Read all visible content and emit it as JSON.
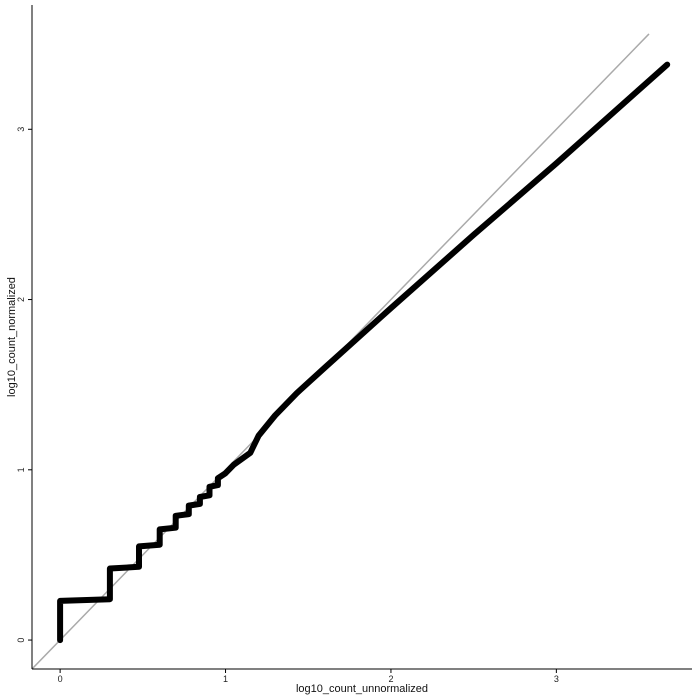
{
  "chart_data": {
    "type": "line",
    "xlabel": "log10_count_unnormalized",
    "ylabel": "log10_count_normalized",
    "xlim": [
      -0.17,
      3.82
    ],
    "ylim": [
      -0.17,
      3.73
    ],
    "x_ticks": [
      0,
      1,
      2,
      3
    ],
    "x_tick_labels": [
      "0",
      "1",
      "2",
      "3"
    ],
    "y_ticks": [
      0,
      1,
      2,
      3
    ],
    "y_tick_labels": [
      "0",
      "1",
      "2",
      "3"
    ],
    "grid": false,
    "colors": {
      "series": "#000000",
      "reference": "#aaaaaa",
      "axis": "#000000"
    },
    "reference_line": {
      "x": [
        -0.17,
        3.56
      ],
      "y": [
        -0.17,
        3.56
      ]
    },
    "series": [
      {
        "x": [
          0,
          0,
          0.301,
          0.301,
          0.477,
          0.477,
          0.602,
          0.602,
          0.699,
          0.699,
          0.778,
          0.778,
          0.845,
          0.845,
          0.903,
          0.903,
          0.954,
          0.954,
          1.0,
          1.05,
          1.15,
          1.2,
          1.3,
          1.43,
          1.6,
          2.0,
          2.5,
          3.0,
          3.67
        ],
        "y": [
          0,
          0.23,
          0.24,
          0.42,
          0.43,
          0.55,
          0.56,
          0.65,
          0.66,
          0.73,
          0.74,
          0.79,
          0.8,
          0.84,
          0.85,
          0.9,
          0.91,
          0.95,
          0.98,
          1.03,
          1.1,
          1.2,
          1.32,
          1.45,
          1.6,
          1.95,
          2.38,
          2.8,
          3.38
        ]
      }
    ]
  }
}
